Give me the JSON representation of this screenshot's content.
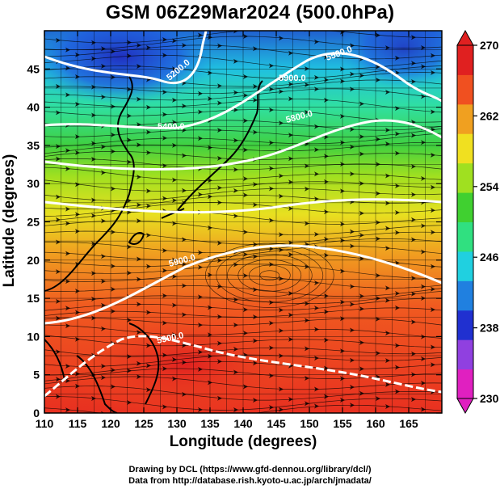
{
  "title": "GSM 06Z29Mar2024 (500.0hPa)",
  "xlabel": "Longitude (degrees)",
  "ylabel": "Latitude  (degrees)",
  "credits": [
    "Drawing by DCL (https://www.gfd-dennou.org/library/dcl/)",
    "Data from http://database.rish.kyoto-u.ac.jp/arch/jmadata/"
  ],
  "map": {
    "lon_range": [
      110,
      170
    ],
    "lat_range": [
      0,
      50
    ],
    "x_ticks": [
      "110",
      "115",
      "120",
      "125",
      "130",
      "135",
      "140",
      "145",
      "150",
      "155",
      "160",
      "165"
    ],
    "y_ticks": [
      "0",
      "5",
      "10",
      "15",
      "20",
      "25",
      "30",
      "35",
      "40",
      "45"
    ],
    "contour_labels": [
      "5200.0",
      "5400.0",
      "5500.0",
      "5800.0",
      "5900.0",
      "5900.0",
      "5900.0"
    ]
  },
  "colorbar": {
    "ticks": [
      "230",
      "238",
      "246",
      "254",
      "262",
      "270"
    ],
    "colors": [
      "#e020c0",
      "#9040e0",
      "#2030d0",
      "#2080e0",
      "#20d0e0",
      "#30e080",
      "#40d030",
      "#a0e020",
      "#f0e020",
      "#f0a020",
      "#f05020",
      "#e02020"
    ]
  }
}
